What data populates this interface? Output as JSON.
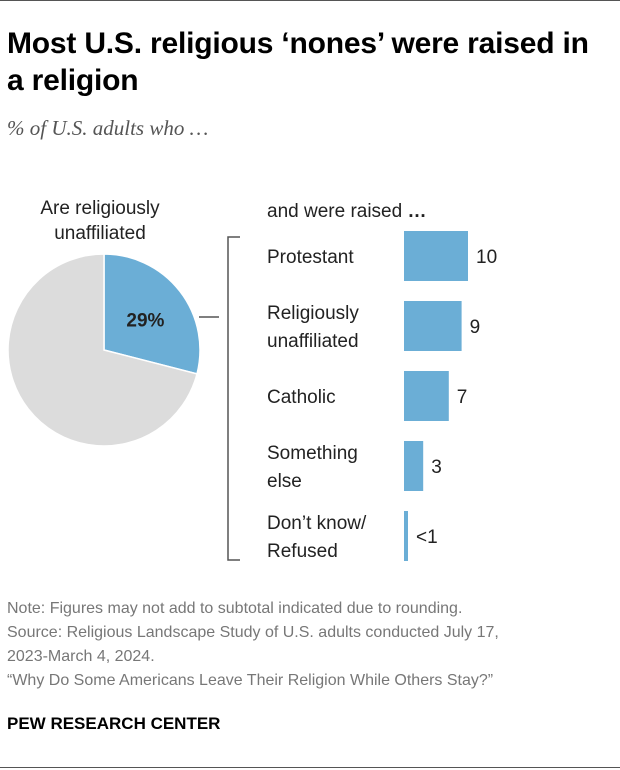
{
  "title": "Most U.S. religious ‘nones’ were raised in a religion",
  "subtitle": "% of U.S. adults who …",
  "pie_label": [
    "Are religiously",
    "unaffiliated"
  ],
  "bar_header": {
    "text": "and were raised",
    "ellipsis": "…"
  },
  "notes": [
    "Note: Figures may not add to subtotal indicated due to rounding.",
    "Source: Religious Landscape Study of U.S. adults conducted July 17,",
    "2023-March 4, 2024.",
    "“Why Do Some Americans Leave Their Religion While Others Stay?”"
  ],
  "brand": "PEW RESEARCH CENTER",
  "colors": {
    "accent": "#6baed6",
    "pie_rest": "#dcdcdc",
    "bracket": "#555555"
  },
  "chart_data": [
    {
      "type": "pie",
      "slices": [
        {
          "label": "29%",
          "value": 29,
          "highlight": true
        },
        {
          "label": "",
          "value": 71,
          "highlight": false
        }
      ]
    },
    {
      "type": "bar",
      "orientation": "horizontal",
      "categories": [
        [
          "Protestant"
        ],
        [
          "Religiously",
          "unaffiliated"
        ],
        [
          "Catholic"
        ],
        [
          "Something",
          "else"
        ],
        [
          "Don’t know/",
          "Refused"
        ]
      ],
      "values": [
        10,
        9,
        7,
        3,
        0.4
      ],
      "value_labels": [
        "10",
        "9",
        "7",
        "3",
        "<1"
      ]
    }
  ]
}
